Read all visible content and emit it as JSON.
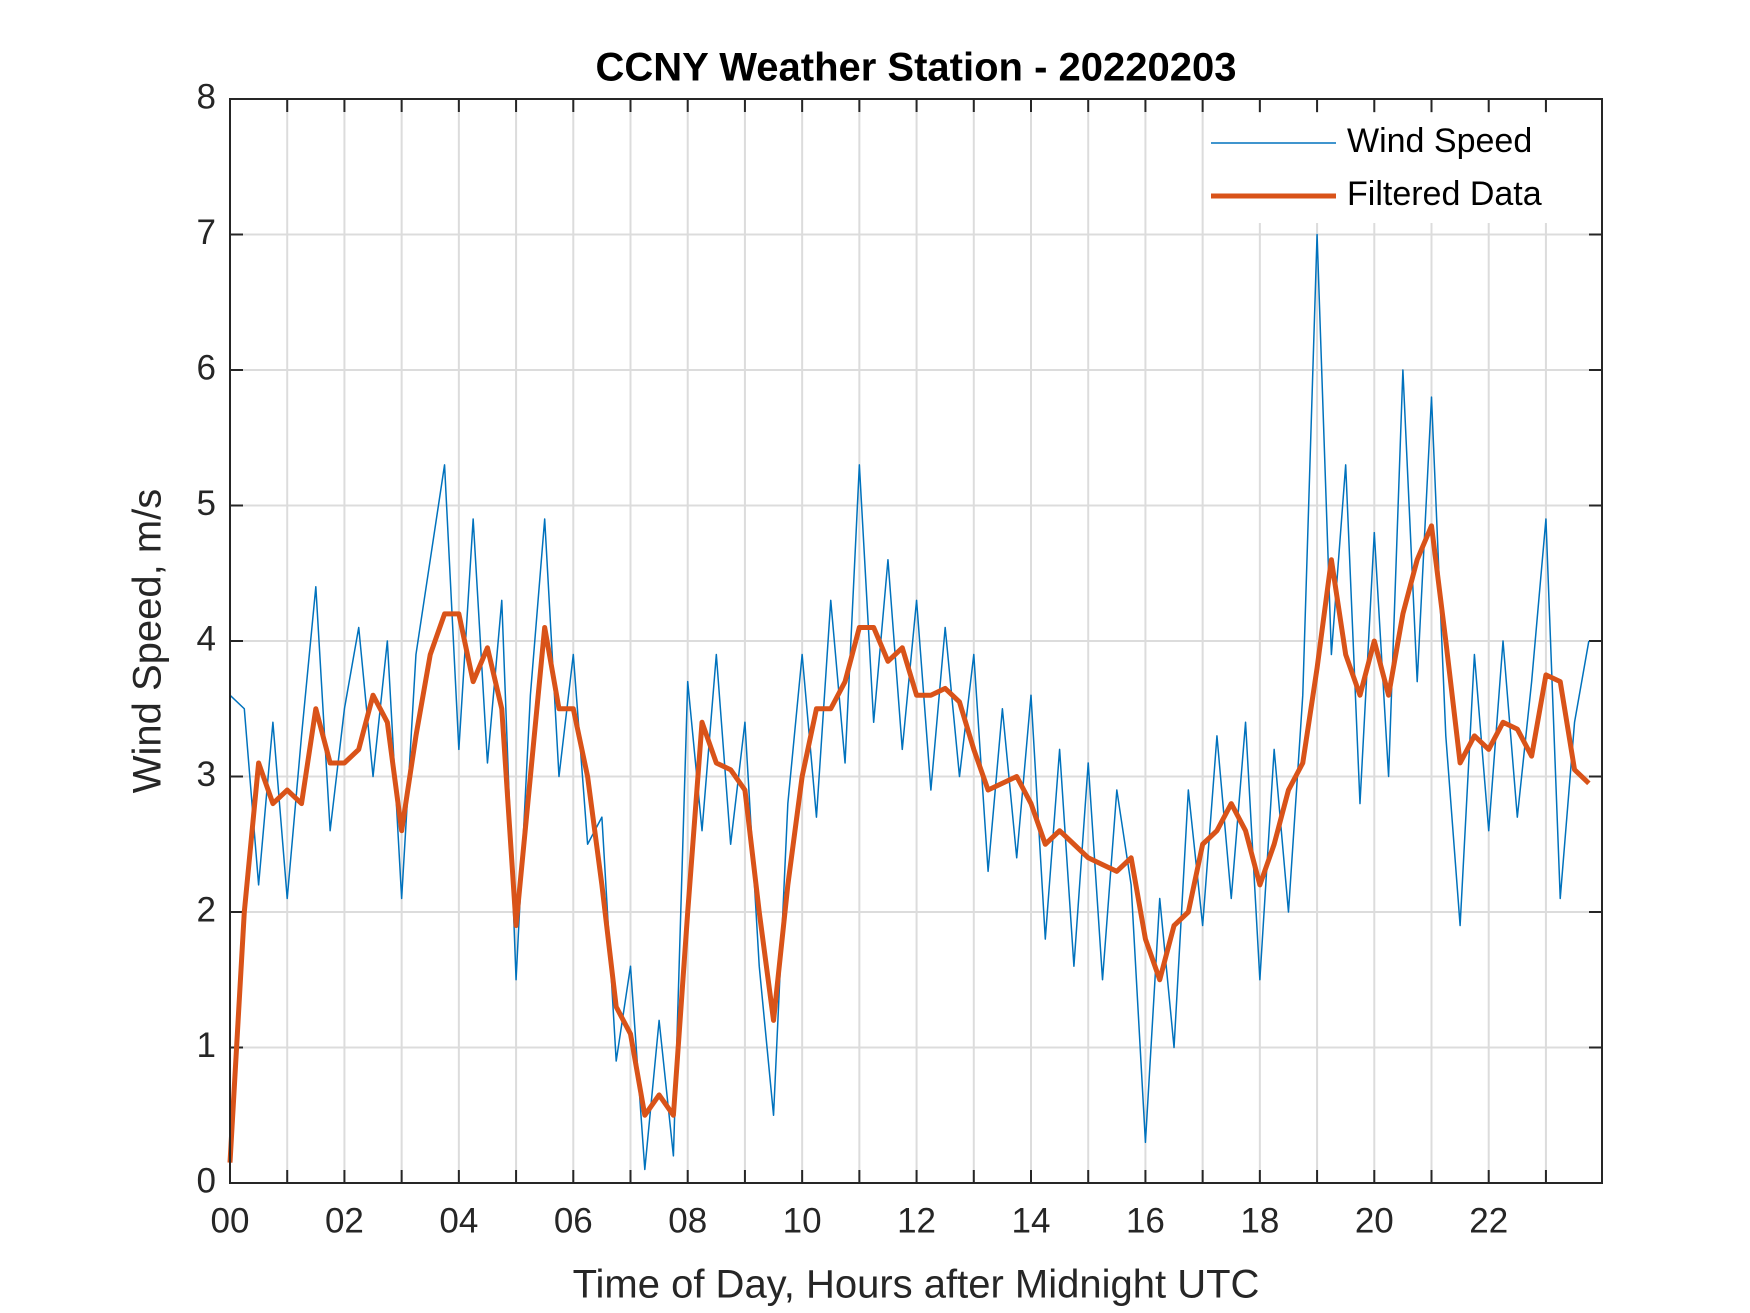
{
  "chart_data": {
    "type": "line",
    "title": "CCNY Weather Station - 20220203",
    "xlabel": "Time of Day, Hours after Midnight UTC",
    "ylabel": "Wind Speed, m/s",
    "x": [
      0,
      0.25,
      0.5,
      0.75,
      1,
      1.25,
      1.5,
      1.75,
      2,
      2.25,
      2.5,
      2.75,
      3,
      3.25,
      3.5,
      3.75,
      4,
      4.25,
      4.5,
      4.75,
      5,
      5.25,
      5.5,
      5.75,
      6,
      6.25,
      6.5,
      6.75,
      7,
      7.25,
      7.5,
      7.75,
      8,
      8.25,
      8.5,
      8.75,
      9,
      9.25,
      9.5,
      9.75,
      10,
      10.25,
      10.5,
      10.75,
      11,
      11.25,
      11.5,
      11.75,
      12,
      12.25,
      12.5,
      12.75,
      13,
      13.25,
      13.5,
      13.75,
      14,
      14.25,
      14.5,
      14.75,
      15,
      15.25,
      15.5,
      15.75,
      16,
      16.25,
      16.5,
      16.75,
      17,
      17.25,
      17.5,
      17.75,
      18,
      18.25,
      18.5,
      18.75,
      19,
      19.25,
      19.5,
      19.75,
      20,
      20.25,
      20.5,
      20.75,
      21,
      21.25,
      21.5,
      21.75,
      22,
      22.25,
      22.5,
      22.75,
      23,
      23.25,
      23.5,
      23.75
    ],
    "series": [
      {
        "name": "Wind Speed",
        "color": "#0072BD",
        "width": 1.5,
        "values": [
          3.6,
          3.5,
          2.2,
          3.4,
          2.1,
          3.3,
          4.4,
          2.6,
          3.5,
          4.1,
          3.0,
          4.0,
          2.1,
          3.9,
          4.6,
          5.3,
          3.2,
          4.9,
          3.1,
          4.3,
          1.5,
          3.6,
          4.9,
          3.0,
          3.9,
          2.5,
          2.7,
          0.9,
          1.6,
          0.1,
          1.2,
          0.2,
          3.7,
          2.6,
          3.9,
          2.5,
          3.4,
          1.6,
          0.5,
          2.8,
          3.9,
          2.7,
          4.3,
          3.1,
          5.3,
          3.4,
          4.6,
          3.2,
          4.3,
          2.9,
          4.1,
          3.0,
          3.9,
          2.3,
          3.5,
          2.4,
          3.6,
          1.8,
          3.2,
          1.6,
          3.1,
          1.5,
          2.9,
          2.2,
          0.3,
          2.1,
          1.0,
          2.9,
          1.9,
          3.3,
          2.1,
          3.4,
          1.5,
          3.2,
          2.0,
          3.6,
          7.0,
          3.9,
          5.3,
          2.8,
          4.8,
          3.0,
          6.0,
          3.7,
          5.8,
          3.3,
          1.9,
          3.9,
          2.6,
          4.0,
          2.7,
          3.7,
          4.9,
          2.1,
          3.4,
          4.0
        ]
      },
      {
        "name": "Filtered Data",
        "color": "#D95319",
        "width": 5,
        "values": [
          0.15,
          2.0,
          3.1,
          2.8,
          2.9,
          2.8,
          3.5,
          3.1,
          3.1,
          3.2,
          3.6,
          3.4,
          2.6,
          3.3,
          3.9,
          4.2,
          4.2,
          3.7,
          3.95,
          3.5,
          1.9,
          3.0,
          4.1,
          3.5,
          3.5,
          3.0,
          2.2,
          1.3,
          1.1,
          0.5,
          0.65,
          0.5,
          2.0,
          3.4,
          3.1,
          3.05,
          2.9,
          2.0,
          1.2,
          2.2,
          3.0,
          3.5,
          3.5,
          3.7,
          4.1,
          4.1,
          3.85,
          3.95,
          3.6,
          3.6,
          3.65,
          3.55,
          3.2,
          2.9,
          2.95,
          3.0,
          2.8,
          2.5,
          2.6,
          2.5,
          2.4,
          2.35,
          2.3,
          2.4,
          1.8,
          1.5,
          1.9,
          2.0,
          2.5,
          2.6,
          2.8,
          2.6,
          2.2,
          2.5,
          2.9,
          3.1,
          3.8,
          4.6,
          3.9,
          3.6,
          4.0,
          3.6,
          4.2,
          4.6,
          4.85,
          4.0,
          3.1,
          3.3,
          3.2,
          3.4,
          3.35,
          3.15,
          3.75,
          3.7,
          3.05,
          2.95
        ]
      }
    ],
    "xlim": [
      0,
      23.98
    ],
    "ylim": [
      0,
      8
    ],
    "xticks": [
      {
        "value": 0,
        "label": "00"
      },
      {
        "value": 2,
        "label": "02"
      },
      {
        "value": 4,
        "label": "04"
      },
      {
        "value": 6,
        "label": "06"
      },
      {
        "value": 8,
        "label": "08"
      },
      {
        "value": 10,
        "label": "10"
      },
      {
        "value": 12,
        "label": "12"
      },
      {
        "value": 14,
        "label": "14"
      },
      {
        "value": 16,
        "label": "16"
      },
      {
        "value": 18,
        "label": "18"
      },
      {
        "value": 20,
        "label": "20"
      },
      {
        "value": 22,
        "label": "22"
      }
    ],
    "xticks_unlabeled": [
      1,
      3,
      5,
      7,
      9,
      11,
      13,
      15,
      17,
      19,
      21,
      23
    ],
    "yticks": [
      0,
      1,
      2,
      3,
      4,
      5,
      6,
      7,
      8
    ],
    "grid": true,
    "legend": "upper right"
  }
}
